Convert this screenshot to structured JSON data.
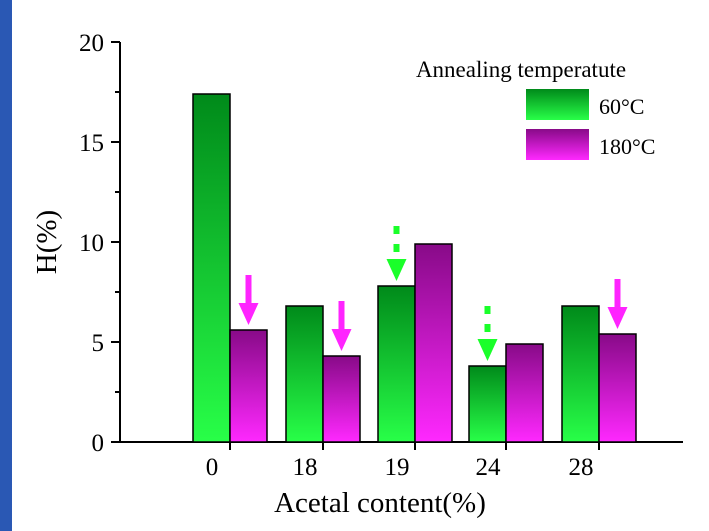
{
  "theme": {
    "frame_color": "#2a58b4",
    "frame_highlight": "#4a7ad8",
    "series_60_top": "#008a1a",
    "series_60_bottom": "#28ff48",
    "series_180_top": "#880a88",
    "series_180_bottom": "#ff28ff",
    "arrow_green": "#1aff2a",
    "arrow_magenta": "#ff24ff"
  },
  "chart_data": {
    "type": "bar",
    "title": "",
    "xlabel": "Acetal content(%)",
    "ylabel": "H(%)",
    "categories": [
      "0",
      "18",
      "19",
      "24",
      "28"
    ],
    "ylim": [
      0,
      20
    ],
    "yticks": [
      0,
      5,
      10,
      15,
      20
    ],
    "grid": false,
    "legend": {
      "title": "Annealing temperatute",
      "placement": "top-right"
    },
    "series": [
      {
        "name": "60°C",
        "values": [
          17.4,
          6.8,
          7.8,
          3.8,
          6.8
        ]
      },
      {
        "name": "180°C",
        "values": [
          5.6,
          4.3,
          9.9,
          4.9,
          5.4
        ]
      }
    ],
    "annotations": [
      {
        "type": "down-arrow",
        "style": "solid",
        "color": "magenta",
        "category": "0",
        "series": "180°C"
      },
      {
        "type": "down-arrow",
        "style": "solid",
        "color": "magenta",
        "category": "18",
        "series": "180°C"
      },
      {
        "type": "down-arrow",
        "style": "dashed",
        "color": "green",
        "category": "19",
        "series": "60°C"
      },
      {
        "type": "down-arrow",
        "style": "dashed",
        "color": "green",
        "category": "24",
        "series": "60°C"
      },
      {
        "type": "down-arrow",
        "style": "solid",
        "color": "magenta",
        "category": "28",
        "series": "180°C"
      }
    ]
  }
}
